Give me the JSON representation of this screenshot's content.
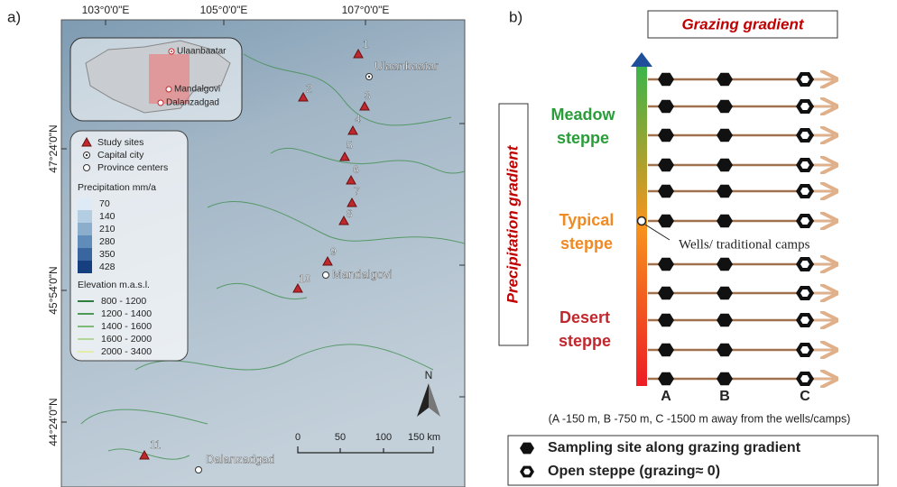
{
  "panel_a": {
    "label": "a)",
    "x_coords": [
      "103°0'0\"E",
      "105°0'0\"E",
      "107°0'0\"E"
    ],
    "y_coords": [
      "47°24'0\"N",
      "45°54'0\"N",
      "44°24'0\"N"
    ],
    "inset": {
      "cities": [
        "Ulaanbaatar",
        "Mandalgovi",
        "Dalanzadgad"
      ]
    },
    "sites": [
      "1",
      "2",
      "3",
      "4",
      "5",
      "6",
      "7",
      "8",
      "9",
      "10",
      "11"
    ],
    "cities": [
      "Ulaanbaatar",
      "Mandalgovi",
      "Dalanzadgad"
    ],
    "legend": {
      "symbols": [
        "Study sites",
        "Capital city",
        "Province centers"
      ],
      "precip_title": "Precipitation mm/a",
      "precip": [
        70,
        140,
        210,
        280,
        350,
        428
      ],
      "elev_title": "Elevation m.a.s.l.",
      "elev": [
        "800 - 1200",
        "1200 - 1400",
        "1400 - 1600",
        "1600 - 2000",
        "2000 - 3400"
      ]
    },
    "scale": [
      "0",
      "50",
      "100",
      "150 km"
    ],
    "north": "N"
  },
  "panel_b": {
    "label": "b)",
    "title": "Grazing gradient",
    "y_label": "Precipitation gradient",
    "zones": [
      {
        "lines": [
          "Meadow",
          "steppe"
        ]
      },
      {
        "lines": [
          "Typical",
          "steppe"
        ]
      },
      {
        "lines": [
          "Desert",
          "steppe"
        ]
      }
    ],
    "annotation": "Wells/ traditional camps",
    "columns": [
      "A",
      "B",
      "C"
    ],
    "caption": "(A -150 m, B -750 m, C -1500 m away from the wells/camps)",
    "legend": [
      "Sampling site along grazing gradient",
      "Open steppe (grazing≈ 0)"
    ]
  }
}
